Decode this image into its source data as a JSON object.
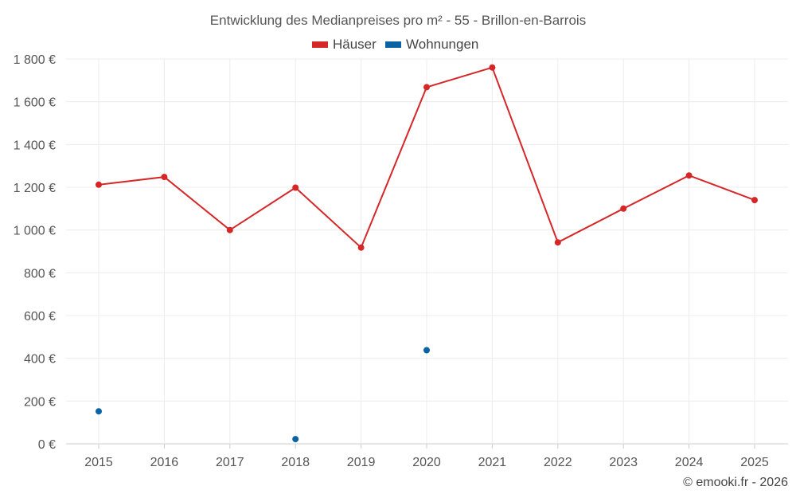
{
  "chart_data": {
    "type": "line",
    "title": "Entwicklung des Medianpreises pro m² - 55 - Brillon-en-Barrois",
    "categories": [
      "2015",
      "2016",
      "2017",
      "2018",
      "2019",
      "2020",
      "2021",
      "2022",
      "2023",
      "2024",
      "2025"
    ],
    "series": [
      {
        "name": "Häuser",
        "color": "#d62728",
        "connected": true,
        "values": [
          1212,
          1248,
          1000,
          1198,
          918,
          1668,
          1760,
          942,
          1100,
          1255,
          1140
        ]
      },
      {
        "name": "Wohnungen",
        "color": "#0a64a4",
        "connected": false,
        "values": [
          152,
          null,
          null,
          22,
          null,
          438,
          null,
          null,
          null,
          null,
          null
        ]
      }
    ],
    "y_ticks": [
      "0 €",
      "200 €",
      "400 €",
      "600 €",
      "800 €",
      "1 000 €",
      "1 200 €",
      "1 400 €",
      "1 600 €",
      "1 800 €"
    ],
    "y_tick_values": [
      0,
      200,
      400,
      600,
      800,
      1000,
      1200,
      1400,
      1600,
      1800
    ],
    "ylim": [
      0,
      1800
    ],
    "xlabel": "",
    "ylabel": "",
    "grid": true,
    "legend_position": "top-center"
  },
  "credit": "© emooki.fr - 2026"
}
